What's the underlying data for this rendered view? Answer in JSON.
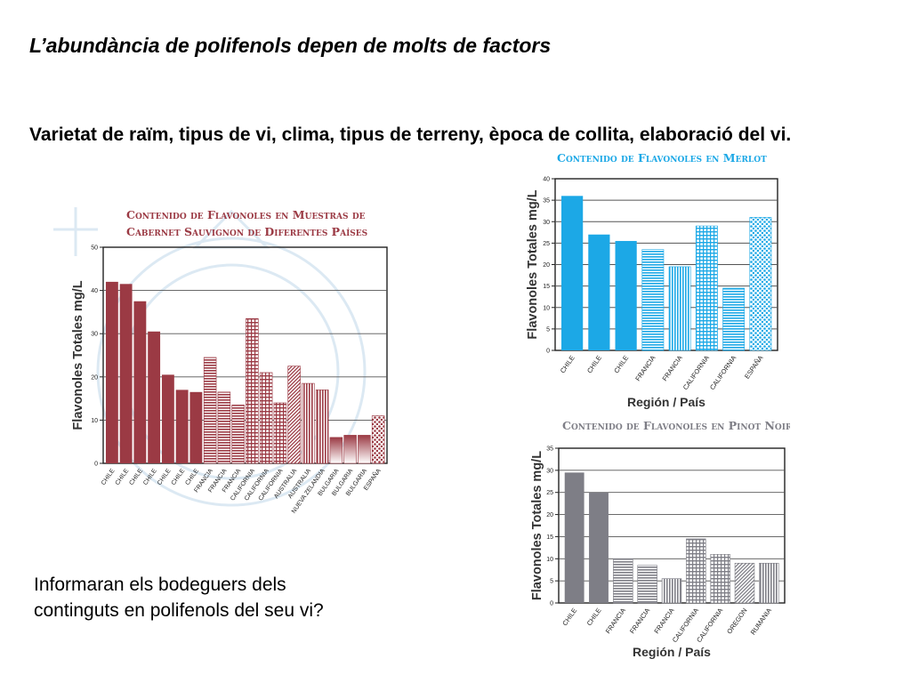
{
  "slide": {
    "title": "L’abundància de polifenols depen de molts de factors",
    "subtitle": "Varietat de raïm, tipus de vi, clima, tipus de terreny, època de collita, elaboració del vi.",
    "question_line1": "Informaran els bodeguers dels",
    "question_line2": "continguts en polifenols del seu vi?"
  },
  "chart_data": [
    {
      "id": "cabernet",
      "type": "bar",
      "title_line1": "Contenido de Flavonoles en Muestras de",
      "title_line2": "Cabernet Sauvignon de Diferentes Países",
      "ylabel": "Flavonoles Totales mg/L",
      "xlabel": "",
      "ylim": [
        0,
        50
      ],
      "yticks": [
        0,
        10,
        20,
        30,
        40,
        50
      ],
      "grid": true,
      "color": "#9b3a44",
      "categories": [
        "CHILE",
        "CHILE",
        "CHILE",
        "CHILE",
        "CHILE",
        "CHILE",
        "CHILE",
        "FRANCIA",
        "FRANCIA",
        "FRANCIA",
        "CALIFORNIA",
        "CALIFORNIA",
        "CALIFORNIA",
        "AUSTRALIA",
        "AUSTRALIA",
        "NUEVA ZELANDIA",
        "BULGARIA",
        "BULGARIA",
        "BULGARIA",
        "ESPAÑA"
      ],
      "values": [
        42,
        41.5,
        37.5,
        30.5,
        20.5,
        17,
        16.5,
        24.5,
        16.5,
        13.5,
        33.5,
        21,
        14,
        22.5,
        18.5,
        17,
        6,
        6.5,
        6.5,
        11
      ],
      "patterns": [
        "solid",
        "solid",
        "solid",
        "solid",
        "solid",
        "solid",
        "solid",
        "hstripe",
        "hstripe",
        "hstripe",
        "grid",
        "grid",
        "grid",
        "diag",
        "vstripe",
        "vstripe",
        "gradient",
        "gradient",
        "gradient",
        "dots"
      ]
    },
    {
      "id": "merlot",
      "type": "bar",
      "title": "Contenido de Flavonoles en Merlot",
      "ylabel": "Flavonoles Totales mg/L",
      "xlabel": "Región / País",
      "ylim": [
        0,
        40
      ],
      "yticks": [
        0,
        5,
        10,
        15,
        20,
        25,
        30,
        35,
        40
      ],
      "grid": true,
      "color": "#1ca8e6",
      "categories": [
        "CHILE",
        "CHILE",
        "CHILE",
        "FRANCIA",
        "FRANCIA",
        "CALIFORNIA",
        "CALIFORNIA",
        "ESPAÑA"
      ],
      "values": [
        36,
        27,
        25.5,
        23.5,
        19.5,
        29,
        14.5,
        31
      ],
      "patterns": [
        "solid",
        "solid",
        "solid",
        "hstripe",
        "vstripe",
        "grid",
        "hstripe",
        "dots"
      ]
    },
    {
      "id": "pinot",
      "type": "bar",
      "title": "Contenido de Flavonoles en Pinot Noir",
      "ylabel": "Flavonoles Totales mg/L",
      "xlabel": "Región / País",
      "ylim": [
        0,
        35
      ],
      "yticks": [
        0,
        5,
        10,
        15,
        20,
        25,
        30,
        35
      ],
      "grid": true,
      "color": "#7e7e86",
      "categories": [
        "CHILE",
        "CHILE",
        "FRANCIA",
        "FRANCIA",
        "FRANCIA",
        "CALIFORNIA",
        "CALIFORNIA",
        "OREGON",
        "RUMANIA"
      ],
      "values": [
        29.5,
        25,
        10,
        8.5,
        5.5,
        14.5,
        11,
        9,
        9
      ],
      "patterns": [
        "solid",
        "solid",
        "hstripe",
        "hstripe",
        "vstripe",
        "grid",
        "grid",
        "diag",
        "vstripe"
      ]
    }
  ]
}
